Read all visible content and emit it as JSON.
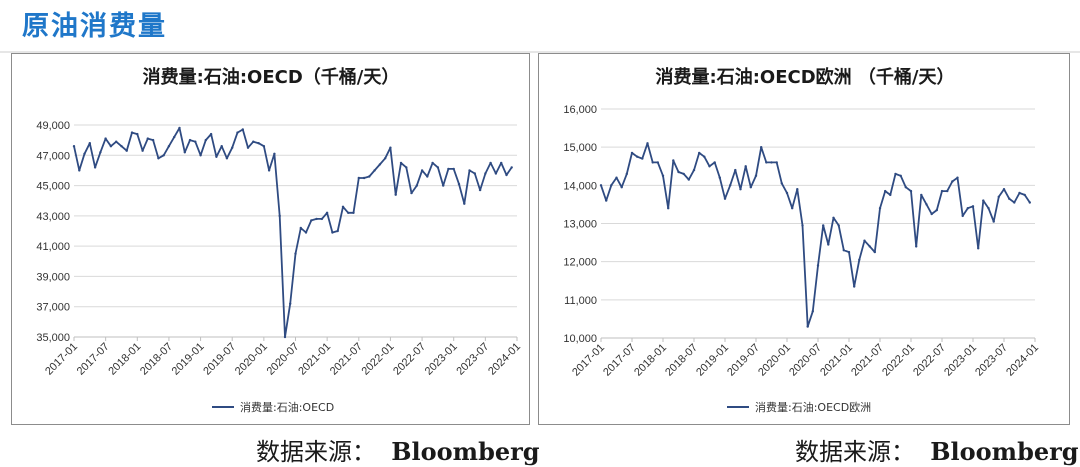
{
  "page": {
    "title": "原油消费量",
    "title_color": "#1f77c9",
    "line_color": "#2f4b82"
  },
  "sources": [
    {
      "label": "数据来源：",
      "value": "Bloomberg"
    },
    {
      "label": "数据来源：",
      "value": "Bloomberg"
    }
  ],
  "chart_data": [
    {
      "type": "line",
      "title": "消费量:石油:OECD（千桶/天）",
      "xlabel": "",
      "ylabel": "",
      "ylim": [
        35000,
        49000
      ],
      "y_ticks": [
        35000,
        37000,
        39000,
        41000,
        43000,
        45000,
        47000,
        49000
      ],
      "y_tick_labels": [
        "35,000",
        "37,000",
        "39,000",
        "41,000",
        "43,000",
        "45,000",
        "47,000",
        "49,000"
      ],
      "x_tick_labels": [
        "2017-01",
        "2017-07",
        "2018-01",
        "2018-07",
        "2019-01",
        "2019-07",
        "2020-01",
        "2020-07",
        "2021-01",
        "2021-07",
        "2022-01",
        "2022-07",
        "2023-01",
        "2023-07",
        "2024-01"
      ],
      "x_start": "2017-01",
      "legend_position": "bottom",
      "grid": "horizontal",
      "series": [
        {
          "name": "消费量:石油:OECD",
          "values": [
            47600,
            46000,
            47100,
            47800,
            46200,
            47200,
            48100,
            47600,
            47900,
            47600,
            47300,
            48500,
            48400,
            47300,
            48100,
            48000,
            46800,
            47000,
            47600,
            48200,
            48800,
            47200,
            48000,
            47900,
            47000,
            48000,
            48400,
            46900,
            47600,
            46800,
            47500,
            48500,
            48700,
            47500,
            47900,
            47800,
            47600,
            46000,
            47100,
            43000,
            35000,
            37200,
            40500,
            42200,
            41900,
            42700,
            42800,
            42800,
            43200,
            41900,
            42000,
            43600,
            43200,
            43200,
            45500,
            45500,
            45600,
            46000,
            46400,
            46800,
            47500,
            44400,
            46500,
            46200,
            44500,
            45000,
            46000,
            45600,
            46500,
            46200,
            45000,
            46100,
            46100,
            45100,
            43800,
            46000,
            45800,
            44700,
            45800,
            46500,
            45800,
            46500,
            45700,
            46200
          ]
        }
      ]
    },
    {
      "type": "line",
      "title": "消费量:石油:OECD欧洲 （千桶/天）",
      "xlabel": "",
      "ylabel": "",
      "ylim": [
        10000,
        16000
      ],
      "y_ticks": [
        10000,
        11000,
        12000,
        13000,
        14000,
        15000,
        16000
      ],
      "y_tick_labels": [
        "10,000",
        "11,000",
        "12,000",
        "13,000",
        "14,000",
        "15,000",
        "16,000"
      ],
      "x_tick_labels": [
        "2017-01",
        "2017-07",
        "2018-01",
        "2018-07",
        "2019-01",
        "2019-07",
        "2020-01",
        "2020-07",
        "2021-01",
        "2021-07",
        "2022-01",
        "2022-07",
        "2023-01",
        "2023-07",
        "2024-01"
      ],
      "x_start": "2017-01",
      "legend_position": "bottom",
      "grid": "horizontal",
      "series": [
        {
          "name": "消费量:石油:OECD欧洲",
          "values": [
            14000,
            13600,
            14000,
            14200,
            13950,
            14300,
            14850,
            14750,
            14700,
            15100,
            14600,
            14600,
            14250,
            13400,
            14650,
            14350,
            14300,
            14150,
            14400,
            14850,
            14750,
            14500,
            14600,
            14200,
            13650,
            14000,
            14400,
            13900,
            14500,
            13950,
            14250,
            15000,
            14600,
            14600,
            14600,
            14050,
            13800,
            13400,
            13900,
            12950,
            10300,
            10700,
            11900,
            12950,
            12450,
            13150,
            12950,
            12300,
            12250,
            11350,
            12050,
            12550,
            12400,
            12250,
            13400,
            13850,
            13750,
            14300,
            14250,
            13950,
            13850,
            12400,
            13750,
            13500,
            13250,
            13350,
            13850,
            13850,
            14100,
            14200,
            13200,
            13400,
            13450,
            12350,
            13600,
            13400,
            13050,
            13700,
            13900,
            13650,
            13550,
            13800,
            13750,
            13550
          ]
        }
      ]
    }
  ]
}
